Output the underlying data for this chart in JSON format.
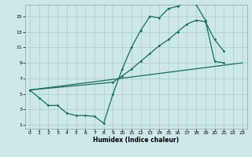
{
  "xlabel": "Humidex (Indice chaleur)",
  "bg_color": "#cce8e8",
  "grid_color": "#aacccc",
  "line_color": "#1a6b5a",
  "xlim": [
    -0.5,
    23.5
  ],
  "ylim": [
    0.5,
    16.5
  ],
  "xticks": [
    0,
    1,
    2,
    3,
    4,
    5,
    6,
    7,
    8,
    9,
    10,
    11,
    12,
    13,
    14,
    15,
    16,
    17,
    18,
    19,
    20,
    21,
    22,
    23
  ],
  "yticks": [
    1,
    3,
    5,
    7,
    9,
    11,
    13,
    15
  ],
  "line1_x": [
    0,
    1,
    2,
    3,
    4,
    5,
    6,
    7,
    8,
    9,
    10,
    11,
    12,
    13,
    14,
    15,
    16,
    17,
    18,
    19,
    20,
    21
  ],
  "line1_y": [
    5.5,
    4.5,
    3.5,
    3.5,
    2.5,
    2.2,
    2.2,
    2.1,
    1.2,
    5.0,
    8.2,
    11.0,
    13.2,
    15.0,
    14.8,
    16.0,
    16.3,
    16.8,
    16.5,
    14.5,
    9.2,
    9.0
  ],
  "line2_x": [
    0,
    23
  ],
  "line2_y": [
    5.5,
    9.0
  ],
  "line3_x": [
    0,
    9,
    10,
    11,
    12,
    13,
    14,
    15,
    16,
    17,
    18,
    19,
    20,
    21
  ],
  "line3_y": [
    5.5,
    6.5,
    7.3,
    8.2,
    9.2,
    10.2,
    11.2,
    12.0,
    13.0,
    14.0,
    14.5,
    14.3,
    12.0,
    10.5
  ]
}
